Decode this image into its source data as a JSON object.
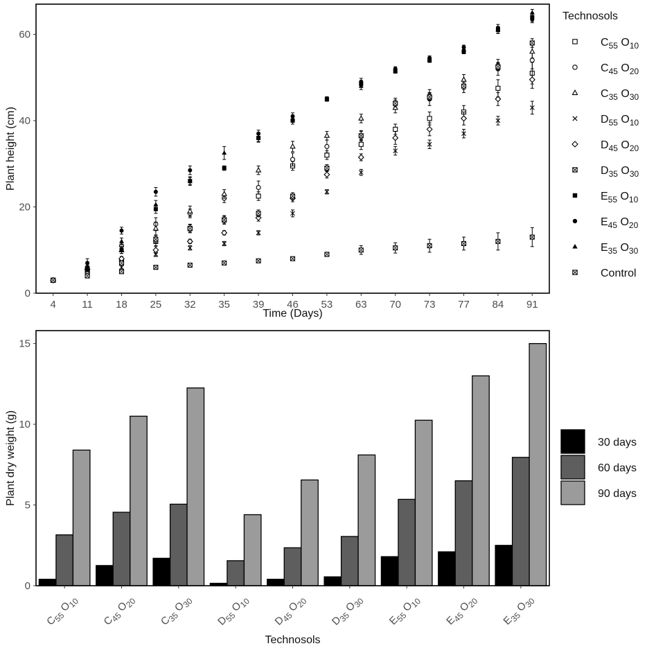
{
  "chart_data": [
    {
      "type": "scatter",
      "xlabel": "Time (Days)",
      "ylabel": "Plant height (cm)",
      "x": [
        "4",
        "11",
        "18",
        "25",
        "32",
        "35",
        "39",
        "46",
        "53",
        "63",
        "70",
        "73",
        "77",
        "84",
        "91"
      ],
      "ylim": [
        0,
        67
      ],
      "yticks": [
        0,
        20,
        40,
        60
      ],
      "grid": false,
      "legend_title": "Technosols",
      "legend_position": "right",
      "series": [
        {
          "base": "C",
          "sub1": "55",
          "mid": " O",
          "sub2": "10",
          "marker": "square-open",
          "values": [
            3,
            5,
            7.5,
            12,
            15,
            17,
            22.5,
            29.5,
            32,
            34.5,
            38,
            40.5,
            42,
            47.5,
            51
          ],
          "errors": [
            0.5,
            0.7,
            0.8,
            1,
            1,
            1,
            1,
            1,
            1,
            1.2,
            1.2,
            1.5,
            1.5,
            2,
            2.5
          ]
        },
        {
          "base": "C",
          "sub1": "45",
          "mid": " O",
          "sub2": "20",
          "marker": "circle-open",
          "values": [
            3,
            6,
            11,
            16,
            18.5,
            22,
            24.5,
            31,
            34,
            36.5,
            44,
            45,
            48,
            52,
            54
          ],
          "errors": [
            0.5,
            0.7,
            0.8,
            1.5,
            1,
            1,
            1.5,
            1.5,
            1.5,
            1.2,
            1.2,
            1.5,
            1.5,
            1.5,
            2
          ]
        },
        {
          "base": "C",
          "sub1": "35",
          "mid": " O",
          "sub2": "30",
          "marker": "triangle-open",
          "values": [
            3,
            6,
            10,
            15,
            19,
            23,
            28.5,
            34,
            36.5,
            40.5,
            43,
            46,
            49.5,
            53,
            56
          ],
          "errors": [
            0.5,
            0.7,
            0.8,
            1.5,
            1.2,
            1,
            1,
            1.2,
            1,
            1,
            1.2,
            1.2,
            1.2,
            1.2,
            1.5
          ]
        },
        {
          "base": "D",
          "sub1": "55",
          "mid": " O",
          "sub2": "10",
          "marker": "cross",
          "values": [
            3,
            5,
            6,
            9,
            10.5,
            11.5,
            14,
            18.5,
            23.5,
            28,
            33,
            34.5,
            37,
            40,
            43
          ],
          "errors": [
            0.5,
            0.5,
            0.5,
            0.5,
            0.5,
            0.5,
            0.5,
            0.8,
            0.5,
            0.7,
            1,
            1,
            1,
            1,
            1.5
          ]
        },
        {
          "base": "D",
          "sub1": "45",
          "mid": " O",
          "sub2": "20",
          "marker": "diamond-open",
          "values": [
            3,
            5.5,
            8,
            10,
            12,
            14,
            17.5,
            22,
            27.5,
            31.5,
            36,
            38,
            40.5,
            45,
            49.5
          ],
          "errors": [
            0.5,
            0.5,
            0.5,
            0.8,
            0.5,
            0.5,
            0.8,
            0.8,
            0.8,
            0.8,
            1.5,
            1.5,
            1.5,
            1.5,
            2
          ]
        },
        {
          "base": "D",
          "sub1": "35",
          "mid": " O",
          "sub2": "30",
          "marker": "square-cross",
          "values": [
            3,
            4.5,
            7,
            12.5,
            15,
            17,
            18.5,
            22.5,
            29,
            36.5,
            44,
            45.5,
            48,
            52.5,
            58
          ],
          "errors": [
            0.5,
            0.5,
            0.5,
            0.8,
            0.8,
            0.8,
            0.8,
            0.8,
            0.8,
            1,
            0.8,
            0.8,
            0.8,
            0.8,
            1
          ]
        },
        {
          "base": "E",
          "sub1": "55",
          "mid": " O",
          "sub2": "10",
          "marker": "square-filled",
          "values": [
            3,
            5.5,
            10,
            19.5,
            26,
            29,
            36,
            40,
            45,
            48.5,
            51.5,
            54,
            56,
            61,
            64
          ],
          "errors": [
            0.5,
            0.5,
            0.8,
            1,
            0.8,
            0.5,
            0.8,
            0.8,
            0.5,
            0.8,
            0.5,
            0.5,
            0.5,
            0.8,
            1
          ]
        },
        {
          "base": "E",
          "sub1": "45",
          "mid": " O",
          "sub2": "20",
          "marker": "circle-filled",
          "values": [
            3,
            7,
            14.5,
            23.5,
            28.5,
            29,
            37,
            41,
            45,
            49,
            52,
            54.5,
            57,
            61.5,
            63.5
          ],
          "errors": [
            0.5,
            1,
            0.8,
            1,
            1,
            0.5,
            0.8,
            0.8,
            0.5,
            0.8,
            0.5,
            0.5,
            0.5,
            0.8,
            0.8
          ]
        },
        {
          "base": "E",
          "sub1": "35",
          "mid": " O",
          "sub2": "30",
          "marker": "triangle-filled",
          "values": [
            3,
            6,
            12,
            20.5,
            26,
            32.5,
            36,
            40.5,
            45,
            48,
            51.5,
            54,
            56.5,
            61,
            65
          ],
          "errors": [
            0.5,
            0.8,
            0.8,
            1,
            1,
            1.5,
            1,
            0.8,
            0.5,
            0.8,
            0.5,
            0.5,
            0.5,
            0.8,
            0.8
          ]
        },
        {
          "base": "Control",
          "sub1": "",
          "mid": "",
          "sub2": "",
          "marker": "square-cross",
          "values": [
            3,
            4,
            5,
            6,
            6.5,
            7,
            7.5,
            8,
            9,
            10,
            10.5,
            11,
            11.5,
            12,
            13
          ],
          "errors": [
            0.3,
            0.3,
            0.3,
            0.3,
            0.3,
            0.3,
            0.3,
            0.3,
            0.5,
            1,
            1.2,
            1.5,
            1.5,
            2,
            2.2
          ]
        }
      ]
    },
    {
      "type": "bar",
      "xlabel": "Technosols",
      "ylabel": "Plant dry weight (g)",
      "ylim": [
        0,
        15.8
      ],
      "yticks": [
        0,
        5,
        10,
        15
      ],
      "grid": false,
      "legend_position": "right",
      "categories": [
        {
          "base": "C",
          "sub1": "55",
          "mid": " O",
          "sub2": "10"
        },
        {
          "base": "C",
          "sub1": "45",
          "mid": " O",
          "sub2": "20"
        },
        {
          "base": "C",
          "sub1": "35",
          "mid": " O",
          "sub2": "30"
        },
        {
          "base": "D",
          "sub1": "55",
          "mid": " O",
          "sub2": "10"
        },
        {
          "base": "D",
          "sub1": "45",
          "mid": " O",
          "sub2": "20"
        },
        {
          "base": "D",
          "sub1": "35",
          "mid": " O",
          "sub2": "30"
        },
        {
          "base": "E",
          "sub1": "55",
          "mid": " O",
          "sub2": "10"
        },
        {
          "base": "E",
          "sub1": "45",
          "mid": " O",
          "sub2": "20"
        },
        {
          "base": "E",
          "sub1": "35",
          "mid": " O",
          "sub2": "30"
        }
      ],
      "series": [
        {
          "name": "30 days",
          "color": "#000000",
          "values": [
            0.4,
            1.25,
            1.7,
            0.15,
            0.4,
            0.55,
            1.8,
            2.1,
            2.5
          ]
        },
        {
          "name": "60 days",
          "color": "#5e5e5e",
          "values": [
            3.15,
            4.55,
            5.05,
            1.55,
            2.35,
            3.05,
            5.35,
            6.5,
            7.95
          ]
        },
        {
          "name": "90 days",
          "color": "#9b9b9b",
          "values": [
            8.4,
            10.5,
            12.25,
            4.4,
            6.55,
            8.1,
            10.25,
            13.0,
            15.0
          ]
        }
      ]
    }
  ]
}
